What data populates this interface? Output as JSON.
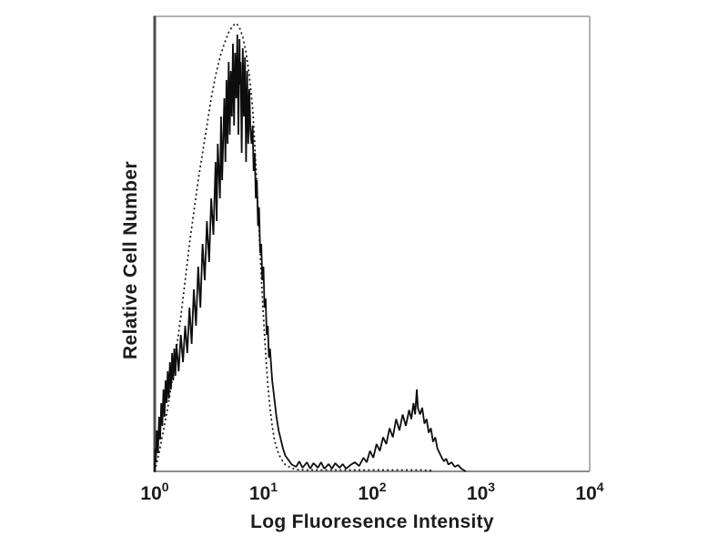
{
  "colors": {
    "background": "#ffffff",
    "frame_top_right": "#9a9a9a",
    "axis_left": "#4d4d4d",
    "axis_bottom": "#8c8c8c",
    "trace": "#0d0d0d",
    "text": "#1c1c1c"
  },
  "chart_data": {
    "type": "line",
    "subtype": "flow-cytometry-histogram-overlay",
    "title": "",
    "xlabel": "Log Fluoresence Intensity",
    "ylabel": "Relative Cell Number",
    "x_scale": "log",
    "xlim_log": [
      0,
      4
    ],
    "ylim": [
      0,
      1
    ],
    "grid": false,
    "legend": false,
    "x_ticks": [
      {
        "log": 0,
        "base": "10",
        "exp": "0"
      },
      {
        "log": 1,
        "base": "10",
        "exp": "1"
      },
      {
        "log": 2,
        "base": "10",
        "exp": "2"
      },
      {
        "log": 3,
        "base": "10",
        "exp": "3"
      },
      {
        "log": 4,
        "base": "10",
        "exp": "4"
      }
    ],
    "series": [
      {
        "name": "dotted-trace",
        "line_style": "dotted",
        "color": "#141414",
        "points": [
          [
            0.0,
            0.0
          ],
          [
            0.04,
            0.04
          ],
          [
            0.08,
            0.09
          ],
          [
            0.12,
            0.14
          ],
          [
            0.16,
            0.2
          ],
          [
            0.2,
            0.27
          ],
          [
            0.24,
            0.34
          ],
          [
            0.28,
            0.42
          ],
          [
            0.32,
            0.5
          ],
          [
            0.36,
            0.57
          ],
          [
            0.4,
            0.64
          ],
          [
            0.44,
            0.7
          ],
          [
            0.48,
            0.76
          ],
          [
            0.52,
            0.82
          ],
          [
            0.56,
            0.87
          ],
          [
            0.6,
            0.91
          ],
          [
            0.64,
            0.94
          ],
          [
            0.68,
            0.965
          ],
          [
            0.72,
            0.98
          ],
          [
            0.75,
            0.985
          ],
          [
            0.78,
            0.975
          ],
          [
            0.81,
            0.955
          ],
          [
            0.84,
            0.92
          ],
          [
            0.87,
            0.87
          ],
          [
            0.9,
            0.8
          ],
          [
            0.92,
            0.72
          ],
          [
            0.94,
            0.63
          ],
          [
            0.96,
            0.53
          ],
          [
            0.98,
            0.43
          ],
          [
            1.0,
            0.34
          ],
          [
            1.02,
            0.26
          ],
          [
            1.04,
            0.19
          ],
          [
            1.06,
            0.14
          ],
          [
            1.08,
            0.1
          ],
          [
            1.1,
            0.07
          ],
          [
            1.13,
            0.045
          ],
          [
            1.16,
            0.028
          ],
          [
            1.2,
            0.015
          ],
          [
            1.25,
            0.008
          ],
          [
            1.3,
            0.004
          ],
          [
            1.4,
            0.003
          ],
          [
            1.55,
            0.003
          ],
          [
            1.7,
            0.003
          ],
          [
            1.85,
            0.003
          ],
          [
            2.0,
            0.003
          ],
          [
            2.15,
            0.003
          ],
          [
            2.3,
            0.003
          ],
          [
            2.45,
            0.003
          ],
          [
            2.55,
            0.002
          ]
        ]
      },
      {
        "name": "solid-trace",
        "line_style": "solid",
        "color": "#0d0d0d",
        "points": [
          [
            0.0,
            0.0
          ],
          [
            0.005,
            0.05
          ],
          [
            0.01,
            0.02
          ],
          [
            0.02,
            0.09
          ],
          [
            0.03,
            0.04
          ],
          [
            0.04,
            0.12
          ],
          [
            0.05,
            0.07
          ],
          [
            0.06,
            0.15
          ],
          [
            0.07,
            0.1
          ],
          [
            0.08,
            0.18
          ],
          [
            0.09,
            0.12
          ],
          [
            0.1,
            0.2
          ],
          [
            0.11,
            0.15
          ],
          [
            0.12,
            0.22
          ],
          [
            0.13,
            0.16
          ],
          [
            0.14,
            0.24
          ],
          [
            0.15,
            0.18
          ],
          [
            0.16,
            0.26
          ],
          [
            0.17,
            0.2
          ],
          [
            0.18,
            0.27
          ],
          [
            0.19,
            0.21
          ],
          [
            0.2,
            0.28
          ],
          [
            0.22,
            0.22
          ],
          [
            0.24,
            0.3
          ],
          [
            0.26,
            0.24
          ],
          [
            0.28,
            0.32
          ],
          [
            0.3,
            0.26
          ],
          [
            0.32,
            0.36
          ],
          [
            0.34,
            0.28
          ],
          [
            0.36,
            0.4
          ],
          [
            0.38,
            0.32
          ],
          [
            0.4,
            0.45
          ],
          [
            0.42,
            0.36
          ],
          [
            0.44,
            0.5
          ],
          [
            0.46,
            0.42
          ],
          [
            0.48,
            0.55
          ],
          [
            0.5,
            0.46
          ],
          [
            0.52,
            0.6
          ],
          [
            0.54,
            0.52
          ],
          [
            0.56,
            0.68
          ],
          [
            0.57,
            0.55
          ],
          [
            0.58,
            0.72
          ],
          [
            0.6,
            0.6
          ],
          [
            0.61,
            0.78
          ],
          [
            0.62,
            0.64
          ],
          [
            0.64,
            0.82
          ],
          [
            0.65,
            0.68
          ],
          [
            0.66,
            0.86
          ],
          [
            0.67,
            0.72
          ],
          [
            0.68,
            0.9
          ],
          [
            0.69,
            0.74
          ],
          [
            0.7,
            0.88
          ],
          [
            0.71,
            0.78
          ],
          [
            0.72,
            0.94
          ],
          [
            0.73,
            0.76
          ],
          [
            0.74,
            0.92
          ],
          [
            0.75,
            0.82
          ],
          [
            0.76,
            0.96
          ],
          [
            0.77,
            0.74
          ],
          [
            0.78,
            0.95
          ],
          [
            0.785,
            0.85
          ],
          [
            0.79,
            0.9
          ],
          [
            0.8,
            0.7
          ],
          [
            0.81,
            0.93
          ],
          [
            0.82,
            0.78
          ],
          [
            0.83,
            0.91
          ],
          [
            0.84,
            0.68
          ],
          [
            0.85,
            0.88
          ],
          [
            0.86,
            0.72
          ],
          [
            0.87,
            0.84
          ],
          [
            0.88,
            0.75
          ],
          [
            0.89,
            0.72
          ],
          [
            0.9,
            0.76
          ],
          [
            0.91,
            0.66
          ],
          [
            0.92,
            0.7
          ],
          [
            0.93,
            0.6
          ],
          [
            0.94,
            0.64
          ],
          [
            0.95,
            0.54
          ],
          [
            0.96,
            0.58
          ],
          [
            0.97,
            0.48
          ],
          [
            0.98,
            0.5
          ],
          [
            0.99,
            0.42
          ],
          [
            1.0,
            0.45
          ],
          [
            1.01,
            0.36
          ],
          [
            1.02,
            0.38
          ],
          [
            1.03,
            0.3
          ],
          [
            1.04,
            0.32
          ],
          [
            1.05,
            0.25
          ],
          [
            1.06,
            0.27
          ],
          [
            1.08,
            0.2
          ],
          [
            1.1,
            0.16
          ],
          [
            1.12,
            0.12
          ],
          [
            1.14,
            0.09
          ],
          [
            1.16,
            0.07
          ],
          [
            1.18,
            0.05
          ],
          [
            1.2,
            0.035
          ],
          [
            1.23,
            0.025
          ],
          [
            1.26,
            0.015
          ],
          [
            1.3,
            0.01
          ],
          [
            1.33,
            0.022
          ],
          [
            1.36,
            0.008
          ],
          [
            1.4,
            0.02
          ],
          [
            1.43,
            0.006
          ],
          [
            1.46,
            0.018
          ],
          [
            1.5,
            0.008
          ],
          [
            1.53,
            0.02
          ],
          [
            1.56,
            0.006
          ],
          [
            1.6,
            0.016
          ],
          [
            1.63,
            0.006
          ],
          [
            1.66,
            0.018
          ],
          [
            1.7,
            0.008
          ],
          [
            1.73,
            0.016
          ],
          [
            1.76,
            0.006
          ],
          [
            1.8,
            0.014
          ],
          [
            1.84,
            0.02
          ],
          [
            1.88,
            0.012
          ],
          [
            1.92,
            0.03
          ],
          [
            1.95,
            0.02
          ],
          [
            1.98,
            0.045
          ],
          [
            2.01,
            0.03
          ],
          [
            2.04,
            0.06
          ],
          [
            2.07,
            0.045
          ],
          [
            2.1,
            0.075
          ],
          [
            2.13,
            0.06
          ],
          [
            2.16,
            0.095
          ],
          [
            2.19,
            0.075
          ],
          [
            2.22,
            0.115
          ],
          [
            2.25,
            0.09
          ],
          [
            2.28,
            0.125
          ],
          [
            2.31,
            0.1
          ],
          [
            2.34,
            0.135
          ],
          [
            2.36,
            0.115
          ],
          [
            2.38,
            0.15
          ],
          [
            2.395,
            0.125
          ],
          [
            2.41,
            0.18
          ],
          [
            2.42,
            0.14
          ],
          [
            2.44,
            0.125
          ],
          [
            2.46,
            0.14
          ],
          [
            2.48,
            0.105
          ],
          [
            2.5,
            0.115
          ],
          [
            2.52,
            0.085
          ],
          [
            2.54,
            0.095
          ],
          [
            2.56,
            0.065
          ],
          [
            2.58,
            0.075
          ],
          [
            2.6,
            0.05
          ],
          [
            2.62,
            0.04
          ],
          [
            2.64,
            0.03
          ],
          [
            2.66,
            0.022
          ],
          [
            2.68,
            0.028
          ],
          [
            2.7,
            0.015
          ],
          [
            2.73,
            0.02
          ],
          [
            2.76,
            0.01
          ],
          [
            2.79,
            0.014
          ],
          [
            2.82,
            0.006
          ],
          [
            2.86,
            0.0
          ]
        ]
      }
    ]
  }
}
